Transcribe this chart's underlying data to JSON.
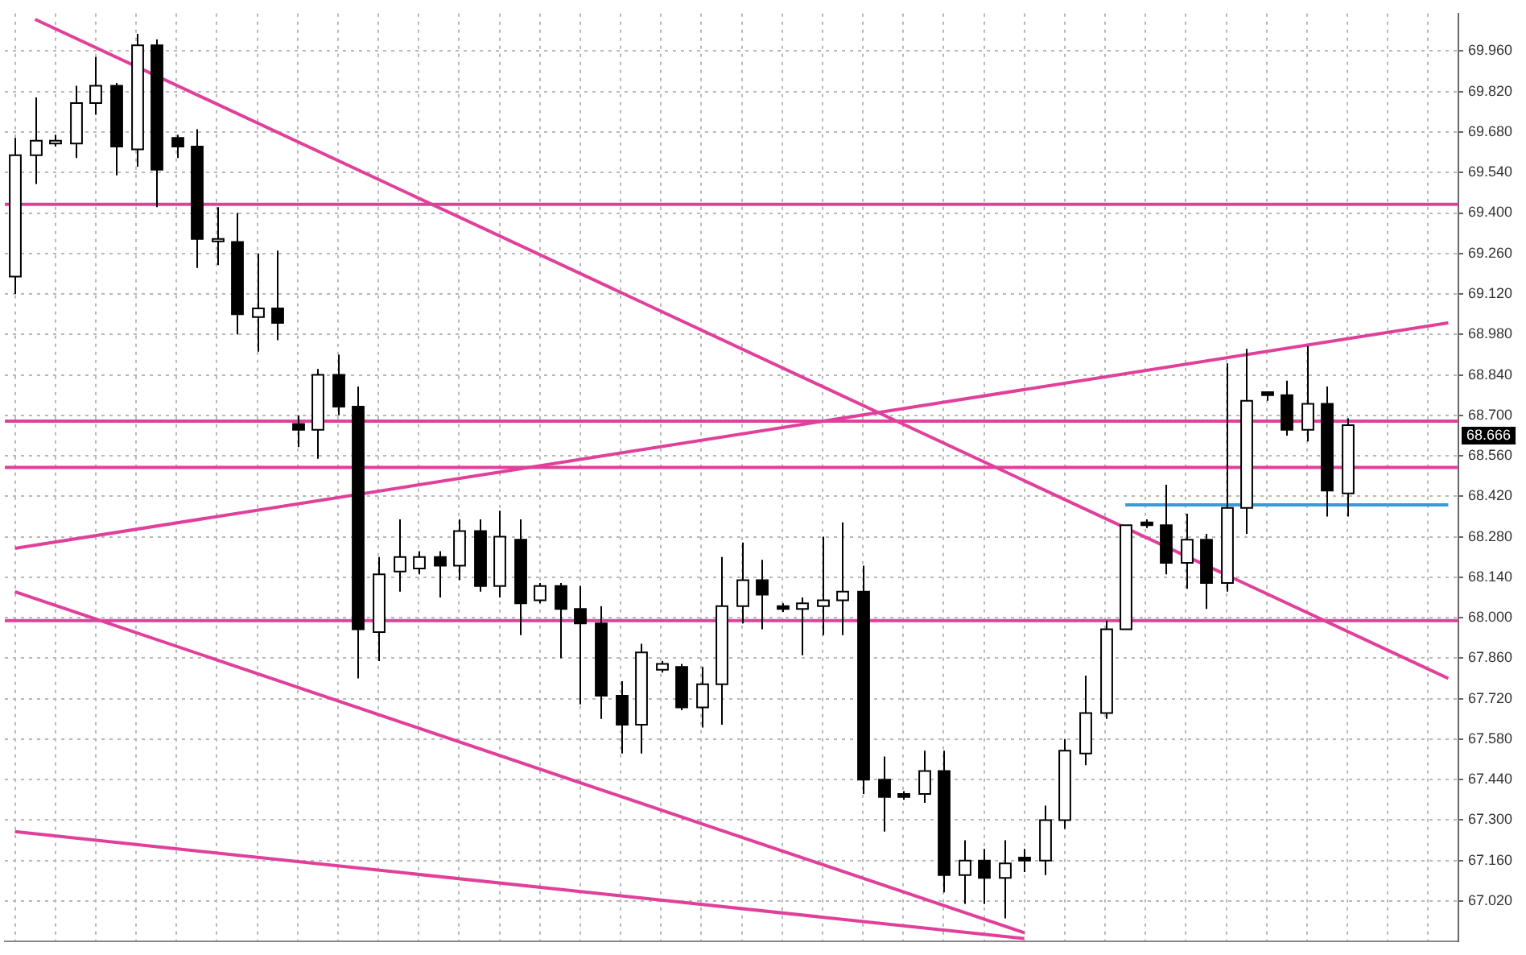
{
  "chart_data": {
    "type": "candlestick",
    "categories": [
      null,
      null,
      null,
      null,
      null,
      null,
      null,
      null,
      null,
      null,
      null,
      null,
      null,
      null,
      null,
      null,
      null,
      null,
      null,
      null,
      null,
      null,
      null,
      null,
      null,
      null,
      null,
      null,
      null,
      null,
      null,
      null,
      null,
      null,
      null,
      null,
      null,
      null,
      null,
      null,
      null,
      null,
      null,
      null,
      null,
      null,
      null,
      null,
      null,
      null,
      null,
      null,
      null,
      null,
      null,
      null,
      null,
      null,
      null,
      null,
      null,
      null,
      null,
      null,
      null,
      null,
      null,
      null,
      null,
      null,
      null,
      null
    ],
    "color": "#000000",
    "colors": [
      "#ffffff",
      "#ffffff",
      "#ffffff",
      "#ffffff",
      "#ffffff",
      "#000000",
      "#ffffff",
      "#000000",
      "#000000",
      "#000000",
      "#ffffff",
      "#000000",
      "#ffffff",
      "#000000",
      "#000000",
      "#ffffff",
      "#000000",
      "#000000",
      "#ffffff",
      "#ffffff",
      "#ffffff",
      "#000000",
      "#ffffff",
      "#000000",
      "#ffffff",
      "#000000",
      "#ffffff",
      "#000000",
      "#000000",
      "#000000",
      "#000000",
      "#ffffff",
      "#ffffff",
      "#000000",
      "#ffffff",
      "#ffffff",
      "#ffffff",
      "#000000",
      "#000000",
      "#ffffff",
      "#ffffff",
      "#ffffff",
      "#000000",
      "#000000",
      "#000000",
      "#ffffff",
      "#000000",
      "#ffffff",
      "#000000",
      "#ffffff",
      "#000000",
      "#ffffff",
      "#ffffff",
      "#ffffff",
      "#ffffff",
      "#ffffff",
      "#000000",
      "#000000",
      "#ffffff",
      "#000000",
      "#ffffff",
      "#ffffff",
      "#000000",
      "#000000",
      "#ffffff",
      "#000000",
      "#ffffff",
      null,
      null,
      null,
      null,
      null
    ],
    "ohlc": [
      [
        69.18,
        69.66,
        69.12,
        69.6
      ],
      [
        69.6,
        69.8,
        69.5,
        69.65
      ],
      [
        69.64,
        69.67,
        69.63,
        69.65
      ],
      [
        69.64,
        69.84,
        69.59,
        69.78
      ],
      [
        69.78,
        69.94,
        69.74,
        69.84
      ],
      [
        69.84,
        69.85,
        69.53,
        69.63
      ],
      [
        69.62,
        70.02,
        69.56,
        69.98
      ],
      [
        69.98,
        70.0,
        69.42,
        69.55
      ],
      [
        69.66,
        69.67,
        69.59,
        69.63
      ],
      [
        69.63,
        69.69,
        69.21,
        69.31
      ],
      [
        69.31,
        69.42,
        69.22,
        69.31
      ],
      [
        69.3,
        69.4,
        68.98,
        69.05
      ],
      [
        69.04,
        69.26,
        68.92,
        69.07
      ],
      [
        69.07,
        69.27,
        68.96,
        69.02
      ],
      [
        68.67,
        68.7,
        68.59,
        68.65
      ],
      [
        68.65,
        68.86,
        68.55,
        68.84
      ],
      [
        68.84,
        68.91,
        68.7,
        68.73
      ],
      [
        68.73,
        68.8,
        67.79,
        67.96
      ],
      [
        67.95,
        68.21,
        67.85,
        68.15
      ],
      [
        68.16,
        68.34,
        68.09,
        68.21
      ],
      [
        68.17,
        68.23,
        68.15,
        68.21
      ],
      [
        68.21,
        68.23,
        68.07,
        68.18
      ],
      [
        68.18,
        68.34,
        68.13,
        68.3
      ],
      [
        68.3,
        68.34,
        68.09,
        68.11
      ],
      [
        68.11,
        68.37,
        68.07,
        68.28
      ],
      [
        68.27,
        68.34,
        67.94,
        68.05
      ],
      [
        68.06,
        68.12,
        68.05,
        68.11
      ],
      [
        68.11,
        68.12,
        67.86,
        68.03
      ],
      [
        68.03,
        68.11,
        67.7,
        67.98
      ],
      [
        67.98,
        68.04,
        67.65,
        67.73
      ],
      [
        67.73,
        67.78,
        67.53,
        67.63
      ],
      [
        67.63,
        67.91,
        67.53,
        67.88
      ],
      [
        67.82,
        67.85,
        67.81,
        67.84
      ],
      [
        67.83,
        67.84,
        67.68,
        67.69
      ],
      [
        67.69,
        67.83,
        67.62,
        67.77
      ],
      [
        67.77,
        68.21,
        67.63,
        68.04
      ],
      [
        68.04,
        68.26,
        67.98,
        68.13
      ],
      [
        68.13,
        68.2,
        67.96,
        68.08
      ],
      [
        68.04,
        68.05,
        68.02,
        68.03
      ],
      [
        68.03,
        68.07,
        67.87,
        68.05
      ],
      [
        68.04,
        68.28,
        67.94,
        68.06
      ],
      [
        68.06,
        68.33,
        67.94,
        68.09
      ],
      [
        68.09,
        68.18,
        67.39,
        67.44
      ],
      [
        67.44,
        67.52,
        67.26,
        67.38
      ],
      [
        67.39,
        67.4,
        67.37,
        67.38
      ],
      [
        67.39,
        67.54,
        67.36,
        67.47
      ],
      [
        67.47,
        67.54,
        67.05,
        67.11
      ],
      [
        67.11,
        67.23,
        67.01,
        67.16
      ],
      [
        67.16,
        67.2,
        67.01,
        67.1
      ],
      [
        67.1,
        67.23,
        66.96,
        67.15
      ],
      [
        67.17,
        67.2,
        67.12,
        67.16
      ],
      [
        67.16,
        67.35,
        67.11,
        67.3
      ],
      [
        67.3,
        67.58,
        67.27,
        67.54
      ],
      [
        67.53,
        67.8,
        67.49,
        67.67
      ],
      [
        67.67,
        67.99,
        67.65,
        67.96
      ],
      [
        67.96,
        68.32,
        67.96,
        68.32
      ],
      [
        68.33,
        68.34,
        68.31,
        68.32
      ],
      [
        68.32,
        68.46,
        68.15,
        68.19
      ],
      [
        68.19,
        68.36,
        68.1,
        68.27
      ],
      [
        68.27,
        68.29,
        68.03,
        68.12
      ],
      [
        68.12,
        68.88,
        68.09,
        68.38
      ],
      [
        68.38,
        68.93,
        68.29,
        68.75
      ],
      [
        68.78,
        68.78,
        68.75,
        68.77
      ],
      [
        68.77,
        68.82,
        68.63,
        68.65
      ],
      [
        68.65,
        68.94,
        68.61,
        68.74
      ],
      [
        68.74,
        68.8,
        68.35,
        68.44
      ],
      [
        68.43,
        68.69,
        68.35,
        68.666
      ],
      null,
      null,
      null,
      null,
      null
    ],
    "series": [
      {
        "type": "line",
        "color": "#e0409a",
        "values": [
          null,
          70.07,
          null,
          null,
          null,
          null,
          null,
          null,
          null,
          null,
          null,
          null,
          null,
          null,
          null,
          null,
          null,
          null,
          null,
          null,
          null,
          null,
          null,
          null,
          null,
          null,
          null,
          null,
          null,
          null,
          null,
          null,
          null,
          null,
          null,
          null,
          null,
          null,
          null,
          null,
          null,
          null,
          null,
          null,
          null,
          null,
          null,
          null,
          null,
          null,
          null,
          null,
          null,
          null,
          null,
          null,
          null,
          null,
          null,
          null,
          null,
          null,
          null,
          null,
          null,
          null,
          null,
          null,
          null,
          null,
          null,
          67.79
        ]
      },
      {
        "type": "line",
        "color": "#e0409a",
        "values": [
          68.24,
          null,
          null,
          null,
          null,
          null,
          null,
          null,
          null,
          null,
          null,
          null,
          null,
          null,
          null,
          null,
          null,
          null,
          null,
          null,
          null,
          null,
          null,
          null,
          null,
          null,
          null,
          null,
          null,
          null,
          null,
          null,
          null,
          null,
          null,
          null,
          null,
          null,
          null,
          null,
          null,
          null,
          null,
          null,
          null,
          null,
          null,
          null,
          null,
          null,
          null,
          null,
          null,
          null,
          null,
          null,
          null,
          null,
          null,
          null,
          null,
          null,
          null,
          null,
          null,
          null,
          null,
          null,
          null,
          null,
          null,
          69.02
        ]
      },
      {
        "type": "line",
        "color": "#e0409a",
        "values": [
          68.09,
          null,
          null,
          null,
          null,
          null,
          null,
          null,
          null,
          null,
          null,
          null,
          null,
          null,
          null,
          null,
          null,
          null,
          null,
          null,
          null,
          null,
          null,
          null,
          null,
          null,
          null,
          null,
          null,
          null,
          null,
          null,
          null,
          null,
          null,
          null,
          null,
          null,
          null,
          null,
          null,
          null,
          null,
          null,
          null,
          null,
          null,
          null,
          null,
          null,
          66.91,
          null,
          null,
          null,
          null,
          null,
          null,
          null,
          null,
          null,
          null,
          null,
          null,
          null,
          null,
          null,
          null,
          null,
          null,
          null,
          null,
          null
        ]
      },
      {
        "type": "line",
        "color": "#e0409a",
        "values": [
          67.26,
          null,
          null,
          null,
          null,
          null,
          null,
          null,
          null,
          null,
          null,
          null,
          null,
          null,
          null,
          null,
          null,
          null,
          null,
          null,
          null,
          null,
          null,
          null,
          null,
          null,
          null,
          null,
          null,
          null,
          null,
          null,
          null,
          null,
          null,
          null,
          null,
          null,
          null,
          null,
          null,
          null,
          null,
          null,
          null,
          null,
          null,
          null,
          null,
          null,
          66.89,
          null,
          null,
          null,
          null,
          null,
          null,
          null,
          null,
          null,
          null,
          null,
          null,
          null,
          null,
          null,
          null,
          null,
          null,
          null,
          null,
          null
        ]
      },
      {
        "type": "line",
        "color": "#3a9ad9",
        "values": [
          null,
          null,
          null,
          null,
          null,
          null,
          null,
          null,
          null,
          null,
          null,
          null,
          null,
          null,
          null,
          null,
          null,
          null,
          null,
          null,
          null,
          null,
          null,
          null,
          null,
          null,
          null,
          null,
          null,
          null,
          null,
          null,
          null,
          null,
          null,
          null,
          null,
          null,
          null,
          null,
          null,
          null,
          null,
          null,
          null,
          null,
          null,
          null,
          null,
          null,
          null,
          null,
          null,
          null,
          null,
          68.39,
          null,
          null,
          null,
          null,
          null,
          null,
          null,
          null,
          null,
          null,
          null,
          null,
          null,
          null,
          null,
          68.39
        ]
      }
    ],
    "ref_lines": [
      {
        "axis": "y",
        "value": 69.43,
        "color": "#e0409a"
      },
      {
        "axis": "y",
        "value": 68.68,
        "color": "#e0409a"
      },
      {
        "axis": "y",
        "value": 68.52,
        "color": "#e0409a"
      },
      {
        "axis": "y",
        "value": 67.99,
        "color": "#e0409a"
      }
    ],
    "annotations": [
      "68.666"
    ],
    "ylim": [
      66.88,
      70.09
    ],
    "yticks": [
      {
        "value": 67.02,
        "label": "67.020"
      },
      {
        "value": 67.16,
        "label": "67.160"
      },
      {
        "value": 67.3,
        "label": "67.300"
      },
      {
        "value": 67.44,
        "label": "67.440"
      },
      {
        "value": 67.58,
        "label": "67.580"
      },
      {
        "value": 67.72,
        "label": "67.720"
      },
      {
        "value": 67.86,
        "label": "67.860"
      },
      {
        "value": 68.0,
        "label": "68.000"
      },
      {
        "value": 68.14,
        "label": "68.140"
      },
      {
        "value": 68.28,
        "label": "68.280"
      },
      {
        "value": 68.42,
        "label": "68.420"
      },
      {
        "value": 68.56,
        "label": "68.560"
      },
      {
        "value": 68.7,
        "label": "68.700"
      },
      {
        "value": 68.84,
        "label": "68.840"
      },
      {
        "value": 68.98,
        "label": "68.980"
      },
      {
        "value": 69.12,
        "label": "69.120"
      },
      {
        "value": 69.26,
        "label": "69.260"
      },
      {
        "value": 69.4,
        "label": "69.400"
      },
      {
        "value": 69.54,
        "label": "69.540"
      },
      {
        "value": 69.68,
        "label": "69.680"
      },
      {
        "value": 69.82,
        "label": "69.820"
      },
      {
        "value": 69.96,
        "label": "69.960"
      }
    ],
    "grid": true,
    "tick_labels": "y"
  }
}
